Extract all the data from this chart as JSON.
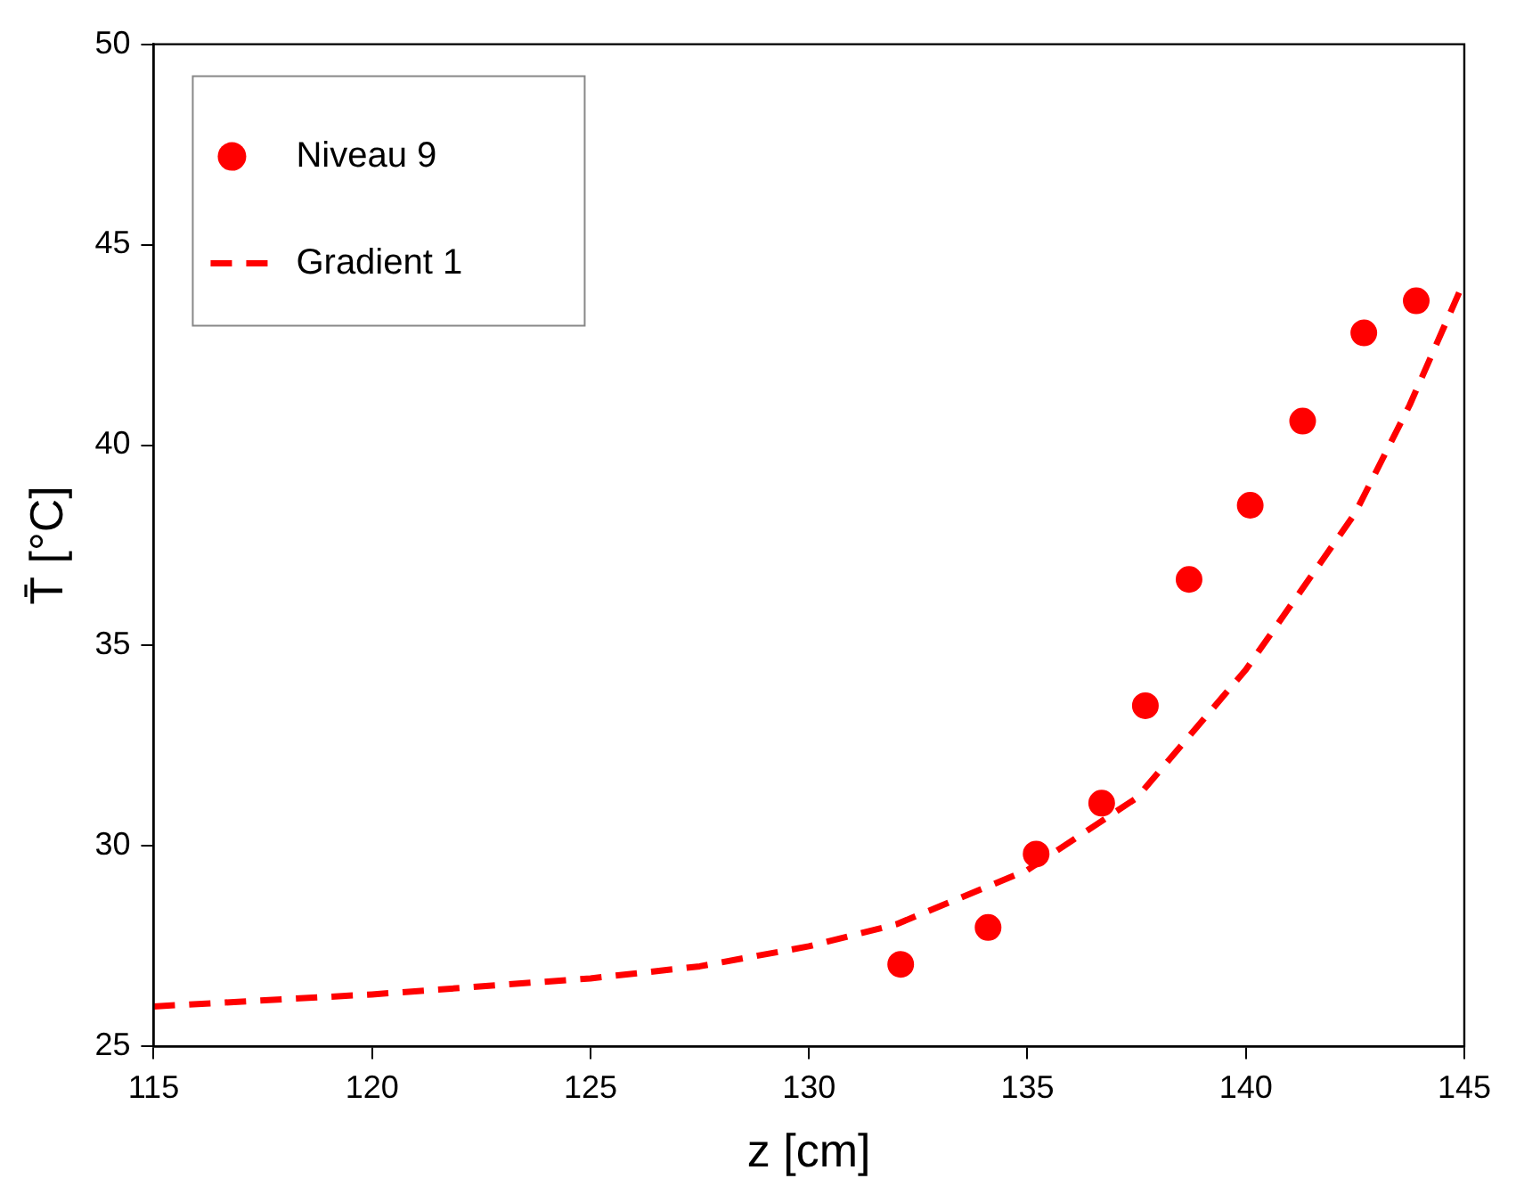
{
  "chart_data": {
    "type": "scatter",
    "xlabel": "z [cm]",
    "ylabel": "T̄ [°C]",
    "xlim": [
      115,
      145
    ],
    "xticks": [
      115,
      120,
      125,
      130,
      135,
      140,
      145
    ],
    "ylim": [
      25,
      50
    ],
    "yticks": [
      25,
      30,
      35,
      40,
      45,
      50
    ],
    "grid": false,
    "legend": "top left",
    "series": [
      {
        "name": "Niveau 9",
        "type": "scatter",
        "color": "#ff0000",
        "marker": "circle",
        "x": [
          132.1,
          134.1,
          135.2,
          136.7,
          137.7,
          138.7,
          140.1,
          141.3,
          142.7,
          143.9
        ],
        "values": [
          27.05,
          27.97,
          29.8,
          31.07,
          33.5,
          36.65,
          38.5,
          40.6,
          42.8,
          43.6
        ]
      },
      {
        "name": "Gradient 1",
        "type": "line",
        "color": "#ff0000",
        "marker": "none",
        "line_style": "dashed",
        "x": [
          115,
          120,
          125,
          127.5,
          130,
          132,
          135,
          137.5,
          140,
          142.5,
          143.75,
          145
        ],
        "values": [
          26.0,
          26.3,
          26.7,
          27.0,
          27.5,
          28.05,
          29.4,
          31.2,
          34.4,
          38.3,
          41.0,
          44.1
        ]
      }
    ]
  }
}
